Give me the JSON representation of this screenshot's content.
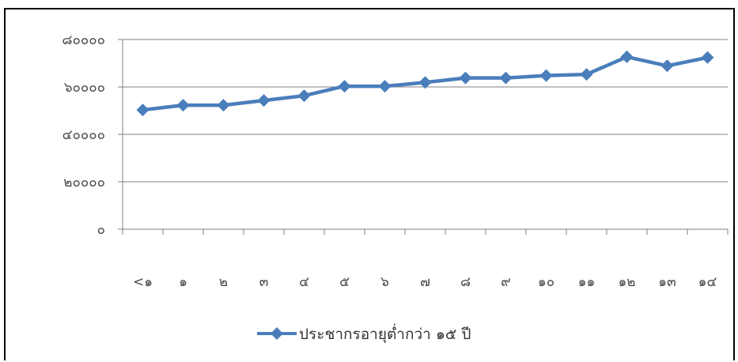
{
  "chart_data": {
    "type": "line",
    "title": "",
    "xlabel": "",
    "ylabel": "",
    "categories": [
      "<๑",
      "๑",
      "๒",
      "๓",
      "๔",
      "๕",
      "๖",
      "๗",
      "๘",
      "๙",
      "๑๐",
      "๑๑",
      "๑๒",
      "๑๓",
      "๑๔"
    ],
    "y_tick_labels": [
      "๐",
      "๒๐๐๐๐",
      "๔๐๐๐๐",
      "๖๐๐๐๐",
      "๘๐๐๐๐"
    ],
    "ylim": [
      0,
      80000
    ],
    "y_ticks": [
      0,
      20000,
      40000,
      60000,
      80000
    ],
    "grid": true,
    "legend_position": "bottom",
    "series": [
      {
        "name": "ประชากรอายุต่ำกว่า ๑๕ ปี",
        "color": "#4a7ebb",
        "marker": "diamond",
        "values": [
          50300,
          52300,
          52300,
          54300,
          56300,
          60300,
          60300,
          61900,
          63800,
          63800,
          64800,
          65300,
          72700,
          68900,
          72400
        ]
      }
    ]
  }
}
